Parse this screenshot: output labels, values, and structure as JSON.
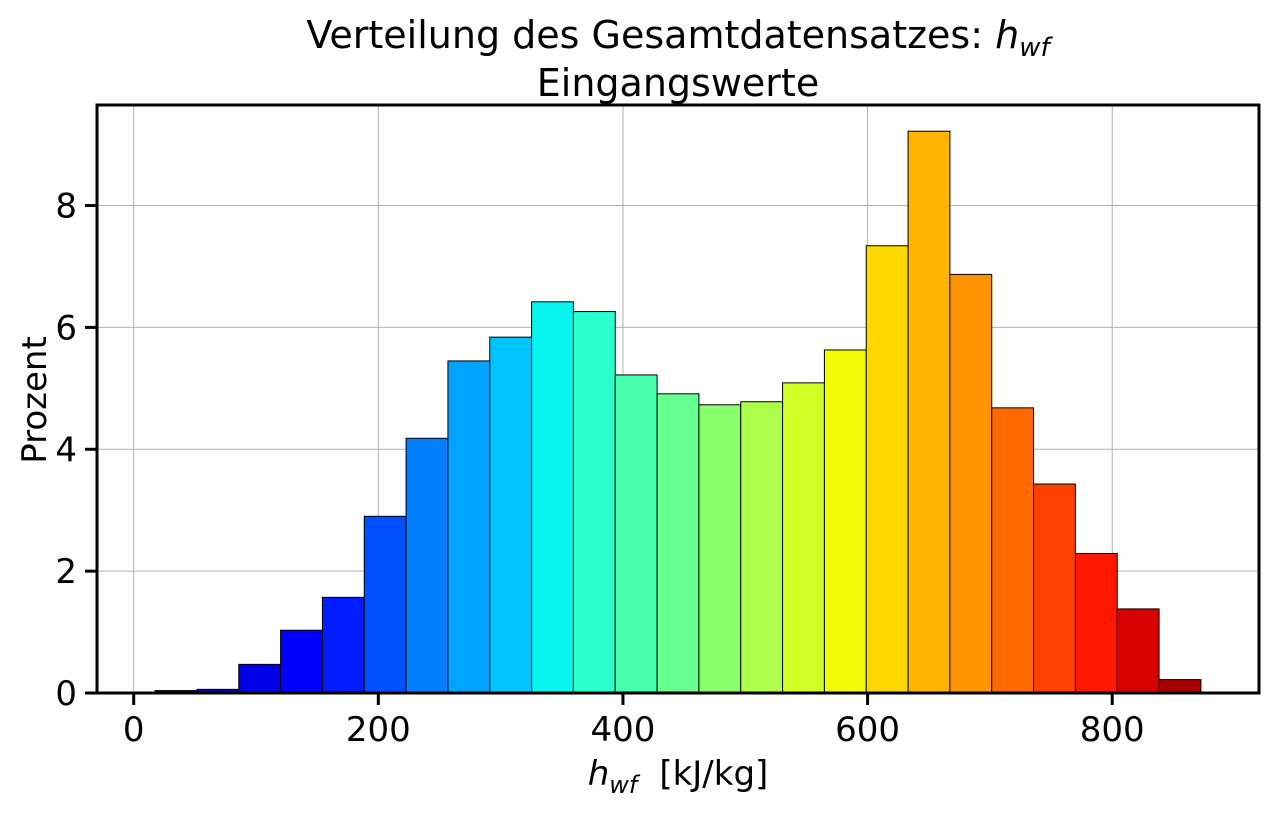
{
  "chart_data": {
    "type": "bar",
    "title_line1_prefix": "Verteilung des Gesamtdatensatzes: ",
    "title_var_main": "h",
    "title_var_sub": "wf",
    "title_line2": "Eingangswerte",
    "xlabel_var_main": "h",
    "xlabel_var_sub": "wf",
    "xlabel_unit": "[kJ/kg]",
    "ylabel": "Prozent",
    "xlim": [
      -30,
      920
    ],
    "ylim": [
      0,
      9.65
    ],
    "xticks": [
      0,
      200,
      400,
      600,
      800
    ],
    "yticks": [
      0,
      2,
      4,
      6,
      8
    ],
    "grid": true,
    "bin_edges": [
      17.5,
      51.7,
      85.9,
      120.1,
      154.3,
      188.5,
      222.7,
      256.9,
      291.1,
      325.3,
      359.5,
      393.7,
      427.9,
      462.1,
      496.3,
      530.5,
      564.7,
      598.9,
      633.1,
      667.3,
      701.5,
      735.7,
      769.9,
      804.1,
      838.3,
      872.5
    ],
    "values": [
      0.04,
      0.06,
      0.47,
      1.03,
      1.57,
      2.9,
      4.18,
      5.45,
      5.84,
      6.42,
      6.26,
      5.22,
      4.91,
      4.73,
      4.78,
      5.09,
      5.63,
      7.34,
      9.22,
      6.87,
      4.68,
      3.43,
      2.29,
      1.38,
      0.22
    ],
    "colors": [
      "#00007f",
      "#0000b2",
      "#0000e8",
      "#0000ff",
      "#001cff",
      "#0050ff",
      "#0080ff",
      "#00a4ff",
      "#00c4ff",
      "#08f4ee",
      "#2affcd",
      "#48ffae",
      "#66ff90",
      "#8aff6c",
      "#adff4a",
      "#d0ff26",
      "#f1fc06",
      "#ffd800",
      "#ffb400",
      "#ff9400",
      "#ff6a00",
      "#ff4000",
      "#ff1800",
      "#d80000",
      "#a80000"
    ]
  }
}
